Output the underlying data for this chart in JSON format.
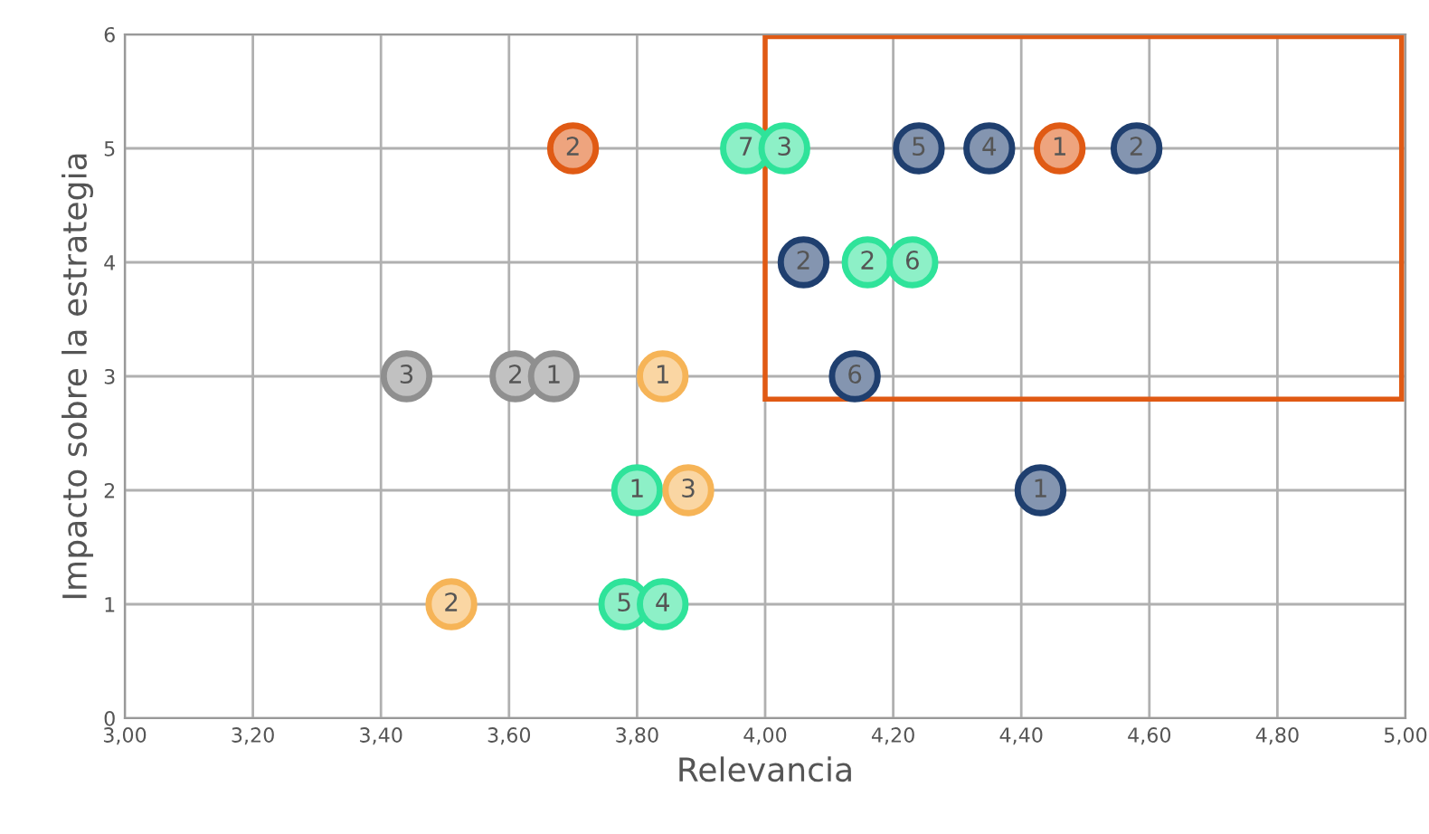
{
  "chart_data": {
    "type": "scatter",
    "xlabel": "Relevancia",
    "ylabel": "Impacto sobre la estrategia",
    "xlim": [
      3.0,
      5.0
    ],
    "ylim": [
      0,
      6
    ],
    "xticks": [
      {
        "value": 3.0,
        "label": "3,00"
      },
      {
        "value": 3.2,
        "label": "3,20"
      },
      {
        "value": 3.4,
        "label": "3,40"
      },
      {
        "value": 3.6,
        "label": "3,60"
      },
      {
        "value": 3.8,
        "label": "3,80"
      },
      {
        "value": 4.0,
        "label": "4,00"
      },
      {
        "value": 4.2,
        "label": "4,20"
      },
      {
        "value": 4.4,
        "label": "4,40"
      },
      {
        "value": 4.6,
        "label": "4,60"
      },
      {
        "value": 4.8,
        "label": "4,80"
      },
      {
        "value": 5.0,
        "label": "5,00"
      }
    ],
    "yticks": [
      0,
      1,
      2,
      3,
      4,
      5,
      6
    ],
    "grid": true,
    "marker": "circle",
    "series": [
      {
        "color": "#e05a14",
        "x": [
          3.7,
          4.46
        ],
        "values": [
          5,
          5
        ]
      },
      {
        "color": "#2fe39a",
        "x": [
          3.97,
          4.03,
          4.16,
          4.23,
          3.8,
          3.78,
          3.84
        ],
        "values": [
          5,
          5,
          4,
          4,
          2,
          1,
          1
        ]
      },
      {
        "color": "#1f3f6f",
        "x": [
          4.24,
          4.35,
          4.58,
          4.06,
          4.14,
          4.43
        ],
        "values": [
          5,
          5,
          5,
          4,
          3,
          2
        ]
      },
      {
        "color": "#8f8f8f",
        "x": [
          3.44,
          3.61,
          3.67
        ],
        "values": [
          3,
          3,
          3
        ]
      },
      {
        "color": "#f6b457",
        "x": [
          3.84,
          3.88,
          3.51
        ],
        "values": [
          3,
          2,
          1
        ]
      }
    ],
    "annotations": [
      {
        "text": "2",
        "x": 3.7,
        "y": 5
      },
      {
        "text": "1",
        "x": 4.46,
        "y": 5
      },
      {
        "text": "7",
        "x": 3.97,
        "y": 5
      },
      {
        "text": "3",
        "x": 4.03,
        "y": 5
      },
      {
        "text": "2",
        "x": 4.16,
        "y": 4
      },
      {
        "text": "6",
        "x": 4.23,
        "y": 4
      },
      {
        "text": "1",
        "x": 3.8,
        "y": 2
      },
      {
        "text": "5",
        "x": 3.78,
        "y": 1
      },
      {
        "text": "4",
        "x": 3.84,
        "y": 1
      },
      {
        "text": "5",
        "x": 4.24,
        "y": 5
      },
      {
        "text": "4",
        "x": 4.35,
        "y": 5
      },
      {
        "text": "2",
        "x": 4.58,
        "y": 5
      },
      {
        "text": "2",
        "x": 4.06,
        "y": 4
      },
      {
        "text": "6",
        "x": 4.14,
        "y": 3
      },
      {
        "text": "1",
        "x": 4.43,
        "y": 2
      },
      {
        "text": "3",
        "x": 3.44,
        "y": 3
      },
      {
        "text": "2",
        "x": 3.61,
        "y": 3
      },
      {
        "text": "1",
        "x": 3.67,
        "y": 3
      },
      {
        "text": "1",
        "x": 3.84,
        "y": 3
      },
      {
        "text": "3",
        "x": 3.88,
        "y": 2
      },
      {
        "text": "2",
        "x": 3.51,
        "y": 1
      }
    ]
  }
}
